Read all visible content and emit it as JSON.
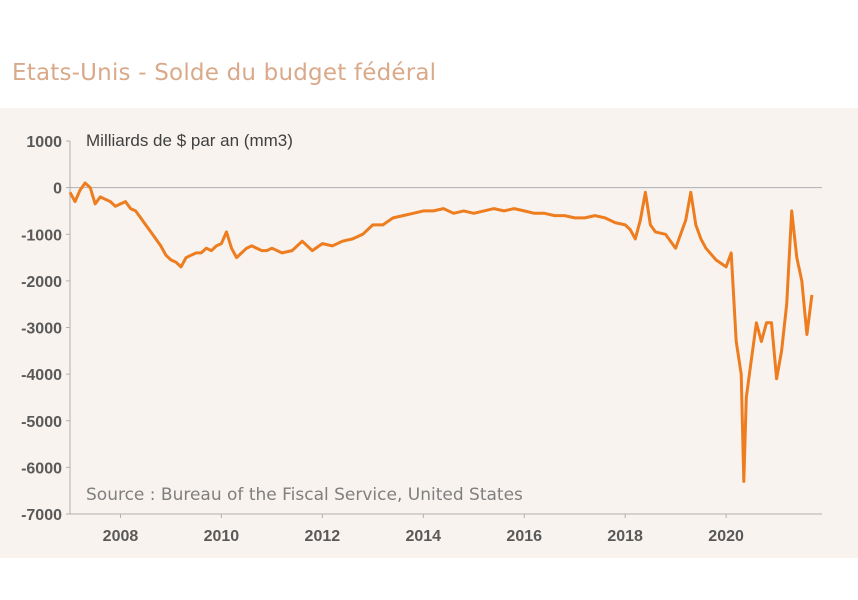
{
  "title": "Etats-Unis - Solde du budget fédéral",
  "chart_data": {
    "type": "line",
    "title": "Etats-Unis - Solde du budget fédéral",
    "ylabel": "Milliards de $ par an (mm3)",
    "source": "Source : Bureau of the Fiscal Service, United States",
    "xlim": [
      2007.0,
      2021.9
    ],
    "ylim": [
      -7000,
      1000
    ],
    "xticks": [
      2008,
      2010,
      2012,
      2014,
      2016,
      2018,
      2020
    ],
    "xtick_labels": [
      "2008",
      "2010",
      "2012",
      "2014",
      "2016",
      "2018",
      "2020"
    ],
    "yticks": [
      1000,
      0,
      -1000,
      -2000,
      -3000,
      -4000,
      -5000,
      -6000,
      -7000
    ],
    "ytick_labels": [
      "1000",
      "0",
      "-1000",
      "-2000",
      "-3000",
      "-4000",
      "-5000",
      "-6000",
      "-7000"
    ],
    "color": "#ed7d1f",
    "grid": false,
    "series": [
      {
        "name": "",
        "x": [
          2007.0,
          2007.1,
          2007.2,
          2007.3,
          2007.4,
          2007.5,
          2007.6,
          2007.7,
          2007.8,
          2007.9,
          2008.0,
          2008.1,
          2008.2,
          2008.3,
          2008.4,
          2008.5,
          2008.6,
          2008.7,
          2008.8,
          2008.9,
          2009.0,
          2009.1,
          2009.2,
          2009.3,
          2009.4,
          2009.5,
          2009.6,
          2009.7,
          2009.8,
          2009.9,
          2010.0,
          2010.1,
          2010.2,
          2010.3,
          2010.4,
          2010.5,
          2010.6,
          2010.7,
          2010.8,
          2010.9,
          2011.0,
          2011.2,
          2011.4,
          2011.6,
          2011.8,
          2012.0,
          2012.2,
          2012.4,
          2012.6,
          2012.8,
          2013.0,
          2013.2,
          2013.4,
          2013.6,
          2013.8,
          2014.0,
          2014.2,
          2014.4,
          2014.6,
          2014.8,
          2015.0,
          2015.2,
          2015.4,
          2015.6,
          2015.8,
          2016.0,
          2016.2,
          2016.4,
          2016.6,
          2016.8,
          2017.0,
          2017.2,
          2017.4,
          2017.6,
          2017.8,
          2018.0,
          2018.1,
          2018.2,
          2018.3,
          2018.4,
          2018.5,
          2018.6,
          2018.8,
          2019.0,
          2019.2,
          2019.3,
          2019.4,
          2019.5,
          2019.6,
          2019.8,
          2020.0,
          2020.1,
          2020.2,
          2020.3,
          2020.35,
          2020.4,
          2020.5,
          2020.6,
          2020.7,
          2020.8,
          2020.9,
          2021.0,
          2021.1,
          2021.2,
          2021.3,
          2021.4,
          2021.5,
          2021.6,
          2021.7
        ],
        "y": [
          -100,
          -300,
          -50,
          100,
          0,
          -350,
          -200,
          -250,
          -300,
          -400,
          -350,
          -300,
          -450,
          -500,
          -650,
          -800,
          -950,
          -1100,
          -1250,
          -1450,
          -1550,
          -1600,
          -1700,
          -1500,
          -1450,
          -1400,
          -1400,
          -1300,
          -1350,
          -1250,
          -1200,
          -950,
          -1300,
          -1500,
          -1400,
          -1300,
          -1250,
          -1300,
          -1350,
          -1350,
          -1300,
          -1400,
          -1350,
          -1150,
          -1350,
          -1200,
          -1250,
          -1150,
          -1100,
          -1000,
          -800,
          -800,
          -650,
          -600,
          -550,
          -500,
          -500,
          -450,
          -550,
          -500,
          -550,
          -500,
          -450,
          -500,
          -450,
          -500,
          -550,
          -550,
          -600,
          -600,
          -650,
          -650,
          -600,
          -650,
          -750,
          -800,
          -900,
          -1100,
          -700,
          -100,
          -800,
          -950,
          -1000,
          -1300,
          -700,
          -100,
          -800,
          -1100,
          -1300,
          -1550,
          -1700,
          -1400,
          -3300,
          -4000,
          -6300,
          -4500,
          -3700,
          -2900,
          -3300,
          -2900,
          -2900,
          -4100,
          -3500,
          -2500,
          -500,
          -1500,
          -2000,
          -3150,
          -2300
        ]
      }
    ]
  }
}
